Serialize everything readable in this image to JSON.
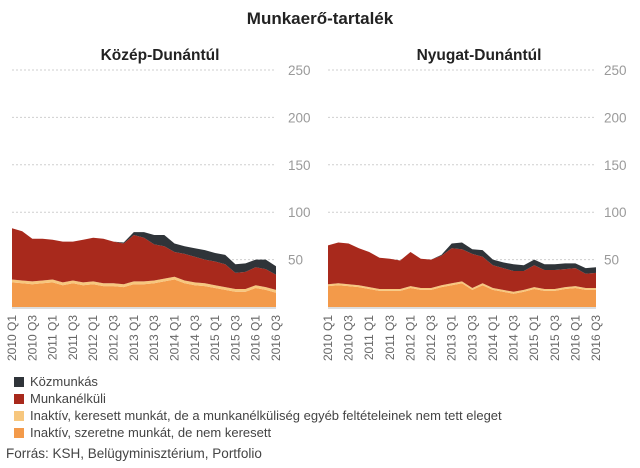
{
  "title": "Munkaerő-tartalék",
  "source": "Forrás: KSH, Belügyminisztérium, Portfolio",
  "chart_data": [
    {
      "type": "area",
      "title": "Közép-Dunántúl",
      "ylim": [
        0,
        250
      ],
      "yticks": [
        50,
        100,
        150,
        200,
        250
      ],
      "x": [
        "2010 Q1",
        "2010 Q2",
        "2010 Q3",
        "2010 Q4",
        "2011 Q1",
        "2011 Q2",
        "2011 Q3",
        "2011 Q4",
        "2012 Q1",
        "2012 Q2",
        "2012 Q3",
        "2012 Q4",
        "2013 Q1",
        "2013 Q2",
        "2013 Q3",
        "2013 Q4",
        "2014 Q1",
        "2014 Q2",
        "2014 Q3",
        "2014 Q4",
        "2015 Q1",
        "2015 Q2",
        "2015 Q3",
        "2015 Q4",
        "2016 Q1",
        "2016 Q2",
        "2016 Q3"
      ],
      "xticks": [
        "2010 Q1",
        "2010 Q3",
        "2011 Q1",
        "2011 Q3",
        "2012 Q1",
        "2012 Q3",
        "2013 Q1",
        "2013 Q3",
        "2014 Q1",
        "2014 Q3",
        "2015 Q1",
        "2015 Q3",
        "2016 Q1",
        "2016 Q3"
      ],
      "series": [
        {
          "name": "Inaktív, szeretne munkát, de nem keresett",
          "color": "#f39a4a",
          "values": [
            26,
            25,
            24,
            25,
            26,
            23,
            25,
            23,
            24,
            22,
            22,
            21,
            24,
            24,
            25,
            27,
            29,
            25,
            23,
            22,
            20,
            18,
            16,
            16,
            20,
            18,
            15
          ]
        },
        {
          "name": "Inaktív, keresett munkát, de a munkanélküliség egyéb feltételeinek nem tett eleget",
          "color": "#f7c77e",
          "values": [
            3,
            3,
            3,
            3,
            3,
            3,
            3,
            3,
            3,
            3,
            3,
            3,
            3,
            3,
            3,
            3,
            3,
            3,
            3,
            3,
            3,
            3,
            3,
            3,
            3,
            3,
            3
          ]
        },
        {
          "name": "Munkanélküli",
          "color": "#a8291c",
          "values": [
            54,
            52,
            45,
            44,
            42,
            43,
            41,
            45,
            46,
            47,
            44,
            43,
            49,
            46,
            38,
            34,
            26,
            28,
            27,
            25,
            25,
            24,
            17,
            18,
            19,
            19,
            16
          ]
        },
        {
          "name": "Közmunkás",
          "color": "#2f3439",
          "values": [
            0,
            0,
            0,
            0,
            0,
            0,
            0,
            0,
            0,
            0,
            0,
            1,
            3,
            6,
            10,
            12,
            9,
            8,
            9,
            10,
            9,
            10,
            9,
            9,
            8,
            10,
            9
          ]
        }
      ]
    },
    {
      "type": "area",
      "title": "Nyugat-Dunántúl",
      "ylim": [
        0,
        250
      ],
      "yticks": [
        50,
        100,
        150,
        200,
        250
      ],
      "x": [
        "2010 Q1",
        "2010 Q2",
        "2010 Q3",
        "2010 Q4",
        "2011 Q1",
        "2011 Q2",
        "2011 Q3",
        "2011 Q4",
        "2012 Q1",
        "2012 Q2",
        "2012 Q3",
        "2012 Q4",
        "2013 Q1",
        "2013 Q2",
        "2013 Q3",
        "2013 Q4",
        "2014 Q1",
        "2014 Q2",
        "2014 Q3",
        "2014 Q4",
        "2015 Q1",
        "2015 Q2",
        "2015 Q3",
        "2015 Q4",
        "2016 Q1",
        "2016 Q2",
        "2016 Q3"
      ],
      "xticks": [
        "2010 Q1",
        "2010 Q3",
        "2011 Q1",
        "2011 Q3",
        "2012 Q1",
        "2012 Q3",
        "2013 Q1",
        "2013 Q3",
        "2014 Q1",
        "2014 Q3",
        "2015 Q1",
        "2015 Q3",
        "2016 Q1",
        "2016 Q3"
      ],
      "series": [
        {
          "name": "Inaktív, szeretne munkát, de nem keresett",
          "color": "#f39a4a",
          "values": [
            22,
            23,
            22,
            21,
            19,
            17,
            17,
            17,
            20,
            18,
            18,
            21,
            23,
            25,
            18,
            23,
            18,
            16,
            14,
            16,
            19,
            17,
            17,
            19,
            20,
            18,
            18
          ]
        },
        {
          "name": "Inaktív, keresett munkát, de a munkanélküliség egyéb feltételeinek nem tett eleget",
          "color": "#f7c77e",
          "values": [
            2,
            2,
            2,
            2,
            2,
            2,
            2,
            2,
            2,
            2,
            2,
            2,
            2,
            2,
            2,
            2,
            2,
            2,
            2,
            2,
            2,
            2,
            2,
            2,
            2,
            2,
            2
          ]
        },
        {
          "name": "Munkanélküli",
          "color": "#a8291c",
          "values": [
            41,
            43,
            43,
            39,
            37,
            33,
            32,
            30,
            36,
            31,
            30,
            31,
            37,
            34,
            36,
            28,
            24,
            23,
            22,
            20,
            23,
            20,
            20,
            19,
            19,
            15,
            16
          ]
        },
        {
          "name": "Közmunkás",
          "color": "#2f3439",
          "values": [
            0,
            0,
            0,
            0,
            0,
            0,
            0,
            0,
            0,
            0,
            0,
            1,
            5,
            7,
            5,
            7,
            6,
            6,
            7,
            6,
            6,
            6,
            6,
            6,
            5,
            6,
            6
          ]
        }
      ]
    }
  ],
  "legend": [
    {
      "label": "Közmunkás",
      "color": "#2f3439"
    },
    {
      "label": "Munkanélküli",
      "color": "#a8291c"
    },
    {
      "label": "Inaktív, keresett munkát, de a munkanélküliség egyéb feltételeinek nem tett eleget",
      "color": "#f7c77e"
    },
    {
      "label": "Inaktív, szeretne munkát, de nem keresett",
      "color": "#f39a4a"
    }
  ]
}
